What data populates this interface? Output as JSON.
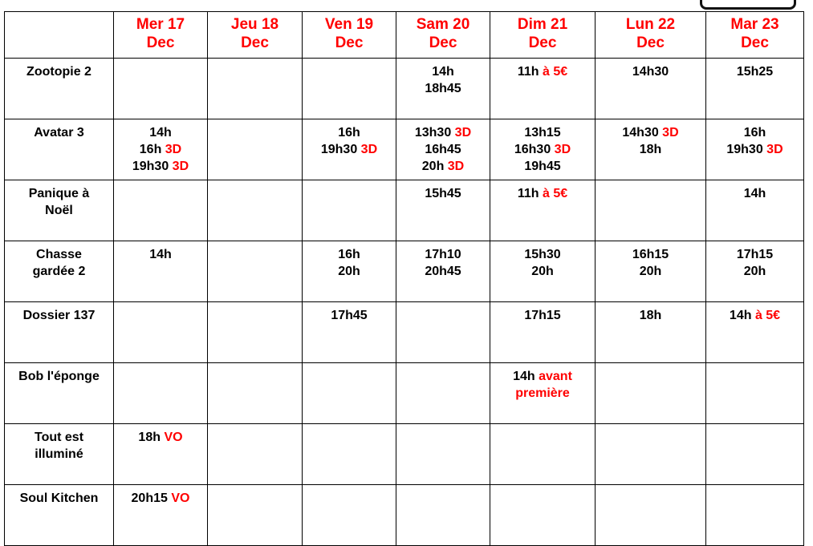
{
  "accent_color": "#ff0000",
  "headers": [
    [
      "Mer 17",
      "Dec"
    ],
    [
      "Jeu 18",
      "Dec"
    ],
    [
      "Ven 19",
      "Dec"
    ],
    [
      "Sam 20",
      "Dec"
    ],
    [
      "Dim 21",
      "Dec"
    ],
    [
      "Lun 22",
      "Dec"
    ],
    [
      "Mar 23",
      "Dec"
    ]
  ],
  "rows": [
    {
      "title": [
        "Zootopie 2"
      ],
      "cells": [
        [],
        [],
        [],
        [
          [
            [
              "14h",
              0
            ]
          ],
          [
            [
              "18h45",
              0
            ]
          ]
        ],
        [
          [
            [
              "11h ",
              0
            ],
            [
              "à 5€",
              1
            ]
          ]
        ],
        [
          [
            [
              "14h30",
              0
            ]
          ]
        ],
        [
          [
            [
              "15h25",
              0
            ]
          ]
        ]
      ]
    },
    {
      "title": [
        "Avatar 3"
      ],
      "cells": [
        [
          [
            [
              "14h",
              0
            ]
          ],
          [
            [
              "16h ",
              0
            ],
            [
              "3D",
              1
            ]
          ],
          [
            [
              "19h30 ",
              0
            ],
            [
              "3D",
              1
            ]
          ]
        ],
        [],
        [
          [
            [
              "16h",
              0
            ]
          ],
          [
            [
              "19h30 ",
              0
            ],
            [
              "3D",
              1
            ]
          ]
        ],
        [
          [
            [
              "13h30 ",
              0
            ],
            [
              "3D",
              1
            ]
          ],
          [
            [
              "16h45",
              0
            ]
          ],
          [
            [
              "20h ",
              0
            ],
            [
              "3D",
              1
            ]
          ]
        ],
        [
          [
            [
              "13h15",
              0
            ]
          ],
          [
            [
              "16h30 ",
              0
            ],
            [
              "3D",
              1
            ]
          ],
          [
            [
              "19h45",
              0
            ]
          ]
        ],
        [
          [
            [
              "14h30 ",
              0
            ],
            [
              "3D",
              1
            ]
          ],
          [
            [
              "18h",
              0
            ]
          ]
        ],
        [
          [
            [
              "16h",
              0
            ]
          ],
          [
            [
              "19h30 ",
              0
            ],
            [
              "3D",
              1
            ]
          ]
        ]
      ]
    },
    {
      "title": [
        "Panique à",
        "Noël"
      ],
      "cells": [
        [],
        [],
        [],
        [
          [
            [
              "15h45",
              0
            ]
          ]
        ],
        [
          [
            [
              "11h ",
              0
            ],
            [
              "à 5€",
              1
            ]
          ]
        ],
        [],
        [
          [
            [
              "14h",
              0
            ]
          ]
        ]
      ]
    },
    {
      "title": [
        "Chasse",
        "gardée 2"
      ],
      "cells": [
        [
          [
            [
              "14h",
              0
            ]
          ]
        ],
        [],
        [
          [
            [
              "16h",
              0
            ]
          ],
          [
            [
              "20h",
              0
            ]
          ]
        ],
        [
          [
            [
              "17h10",
              0
            ]
          ],
          [
            [
              "20h45",
              0
            ]
          ]
        ],
        [
          [
            [
              "15h30",
              0
            ]
          ],
          [
            [
              "20h",
              0
            ]
          ]
        ],
        [
          [
            [
              "16h15",
              0
            ]
          ],
          [
            [
              "20h",
              0
            ]
          ]
        ],
        [
          [
            [
              "17h15",
              0
            ]
          ],
          [
            [
              "20h",
              0
            ]
          ]
        ]
      ]
    },
    {
      "title": [
        "Dossier 137"
      ],
      "cells": [
        [],
        [],
        [
          [
            [
              "17h45",
              0
            ]
          ]
        ],
        [],
        [
          [
            [
              "17h15",
              0
            ]
          ]
        ],
        [
          [
            [
              "18h",
              0
            ]
          ]
        ],
        [
          [
            [
              "14h ",
              0
            ],
            [
              "à 5€",
              1
            ]
          ]
        ]
      ]
    },
    {
      "title": [
        "Bob l'éponge"
      ],
      "cells": [
        [],
        [],
        [],
        [],
        [
          [
            [
              "14h ",
              0
            ],
            [
              "avant",
              1
            ]
          ],
          [
            [
              "première",
              1
            ]
          ]
        ],
        [],
        []
      ]
    },
    {
      "title": [
        "Tout est",
        "illuminé"
      ],
      "cells": [
        [
          [
            [
              "18h ",
              0
            ],
            [
              "VO",
              1
            ]
          ]
        ],
        [],
        [],
        [],
        [],
        [],
        []
      ]
    },
    {
      "title": [
        "Soul Kitchen"
      ],
      "cells": [
        [
          [
            [
              "20h15 ",
              0
            ],
            [
              "VO",
              1
            ]
          ]
        ],
        [],
        [],
        [],
        [],
        [],
        []
      ]
    }
  ]
}
